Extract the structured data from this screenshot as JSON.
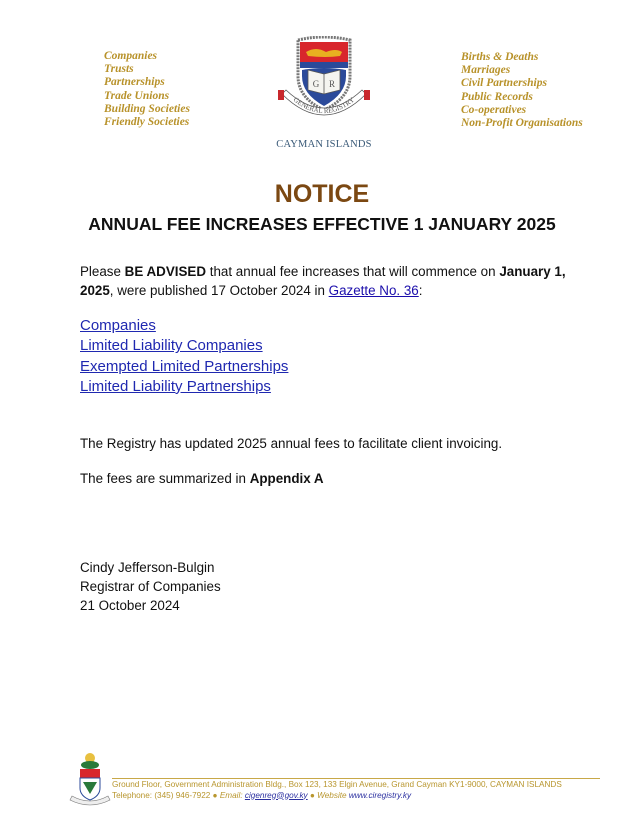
{
  "header": {
    "left_items": [
      "Companies",
      "Trusts",
      "Partnerships",
      "Trade Unions",
      "Building Societies",
      "Friendly Societies"
    ],
    "right_items": [
      "Births & Deaths",
      "Marriages",
      "Civil Partnerships",
      "Public Records",
      "Co-operatives",
      "Non-Profit Organisations"
    ],
    "crest_text": "GENERAL REGISTRY",
    "crest_monogram": "GR",
    "location": "CAYMAN ISLANDS"
  },
  "title": "NOTICE",
  "subtitle": "ANNUAL FEE INCREASES EFFECTIVE 1 JANUARY 2025",
  "intro": {
    "t1": "Please ",
    "b1": "BE ADVISED",
    "t2": " that annual fee increases that will commence on ",
    "b2": "January 1, 2025",
    "t3": ", were published 17 October 2024 in ",
    "link": "Gazette No. 36",
    "t4": ":"
  },
  "links": [
    "Companies",
    "Limited Liability Companies",
    "Exempted Limited Partnerships",
    "Limited Liability Partnerships"
  ],
  "para2": "The Registry has updated 2025 annual fees to facilitate client invoicing.",
  "para3": {
    "t1": "The fees are summarized in ",
    "b1": "Appendix A"
  },
  "signature": {
    "name": "Cindy Jefferson-Bulgin",
    "role": "Registrar of Companies",
    "date": "21 October 2024"
  },
  "footer": {
    "address": "Ground Floor, Government Administration Bldg., Box 123, 133 Elgin Avenue, Grand Cayman KY1-9000, CAYMAN ISLANDS",
    "phone": "Telephone: (345) 946-7922",
    "email_label": "Email:",
    "email": "cigenreg@gov.ky",
    "website_label": "Website",
    "website": "www.ciregistry.ky",
    "bullet": "●"
  },
  "colors": {
    "gold": "#b8922a",
    "notice": "#7b4812",
    "link": "#1f28b0"
  }
}
